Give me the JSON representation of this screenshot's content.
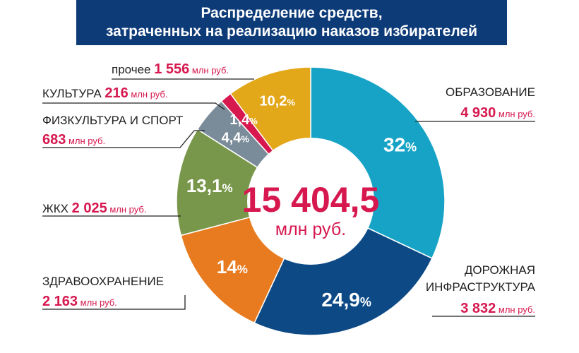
{
  "header": {
    "title_line1": "Распределение средств,",
    "title_line2": "затраченных на реализацию наказов избирателей"
  },
  "center": {
    "total": "15 404,5",
    "unit": "млн руб."
  },
  "colors": {
    "accent": "#d6184f",
    "title_bg": "#0d3b78",
    "leader": "#222222"
  },
  "chart_data": {
    "type": "pie",
    "title": "Распределение средств, затраченных на реализацию наказов избирателей",
    "total": 15404.5,
    "unit": "млн руб.",
    "slices": [
      {
        "name": "ОБРАЗОВАНИЕ",
        "amount_text": "4 930",
        "value": 4930,
        "percent": 32,
        "percent_label": "32%",
        "color": "#16a3c6"
      },
      {
        "name": "ДОРОЖНАЯ ИНФРАСТРУКТУРА",
        "amount_text": "3 832",
        "value": 3832,
        "percent": 24.9,
        "percent_label": "24,9%",
        "color": "#0d4a85"
      },
      {
        "name": "ЗДРАВООХРАНЕНИЕ",
        "amount_text": "2 163",
        "value": 2163,
        "percent": 14,
        "percent_label": "14%",
        "color": "#e87b1f"
      },
      {
        "name": "ЖКХ",
        "amount_text": "2 025",
        "value": 2025,
        "percent": 13.1,
        "percent_label": "13,1%",
        "color": "#78974a"
      },
      {
        "name": "ФИЗКУЛЬТУРА И СПОРТ",
        "amount_text": "683",
        "value": 683,
        "percent": 4.4,
        "percent_label": "4,4%",
        "color": "#7a8b99"
      },
      {
        "name": "КУЛЬТУРА",
        "amount_text": "216",
        "value": 216,
        "percent": 1.4,
        "percent_label": "1,4%",
        "color": "#d6184f"
      },
      {
        "name": "прочее",
        "amount_text": "1 556",
        "value": 1556,
        "percent": 10.2,
        "percent_label": "10,2%",
        "color": "#e3a71a"
      }
    ]
  }
}
